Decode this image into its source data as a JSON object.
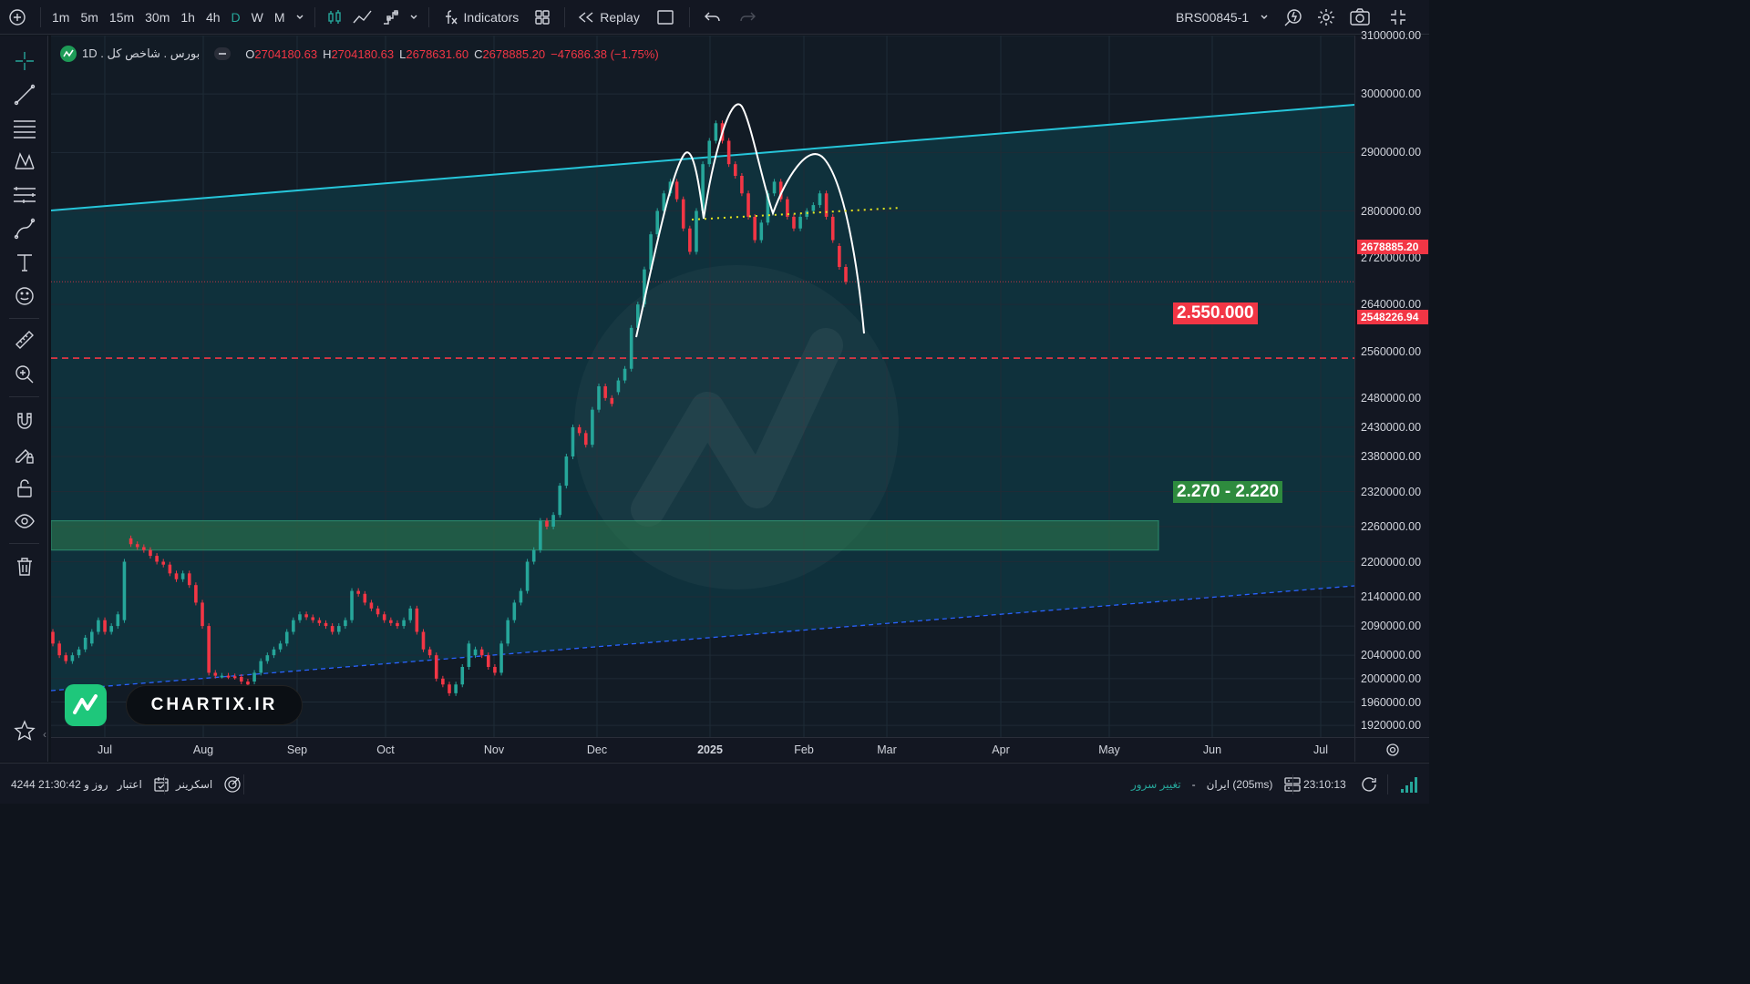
{
  "toolbar": {
    "timeframes": [
      "1m",
      "5m",
      "15m",
      "30m",
      "1h",
      "4h",
      "D",
      "W",
      "M"
    ],
    "active_timeframe": "D",
    "indicators_label": "Indicators",
    "replay_label": "Replay",
    "symbol": "BRS00845-1"
  },
  "legend": {
    "title": "بورس . شاخص کل . 1D",
    "open_key": "O",
    "open": "2704180.63",
    "high_key": "H",
    "high": "2704180.63",
    "low_key": "L",
    "low": "2678631.60",
    "close_key": "C",
    "close": "2678885.20",
    "change": "−47686.38 (−1.75%)"
  },
  "price_axis": {
    "ticks": [
      {
        "label": "3100000.00",
        "value": 3100000
      },
      {
        "label": "3000000.00",
        "value": 3000000
      },
      {
        "label": "2900000.00",
        "value": 2900000
      },
      {
        "label": "2800000.00",
        "value": 2800000
      },
      {
        "label": "2720000.00",
        "value": 2720000
      },
      {
        "label": "2640000.00",
        "value": 2640000
      },
      {
        "label": "2560000.00",
        "value": 2560000
      },
      {
        "label": "2480000.00",
        "value": 2480000
      },
      {
        "label": "2430000.00",
        "value": 2430000
      },
      {
        "label": "2380000.00",
        "value": 2380000
      },
      {
        "label": "2320000.00",
        "value": 2320000
      },
      {
        "label": "2260000.00",
        "value": 2260000
      },
      {
        "label": "2200000.00",
        "value": 2200000
      },
      {
        "label": "2140000.00",
        "value": 2140000
      },
      {
        "label": "2090000.00",
        "value": 2090000
      },
      {
        "label": "2040000.00",
        "value": 2040000
      },
      {
        "label": "2000000.00",
        "value": 2000000
      },
      {
        "label": "1960000.00",
        "value": 1960000
      },
      {
        "label": "1920000.00",
        "value": 1920000
      }
    ],
    "last_price_label": "2678885.20",
    "line_price_label": "2548226.94",
    "badge_colors": {
      "last": "#f23645",
      "line": "#f23645"
    }
  },
  "time_axis": {
    "labels": [
      "Jul",
      "Aug",
      "Sep",
      "Oct",
      "Nov",
      "Dec",
      "2025",
      "Feb",
      "Mar",
      "Apr",
      "May",
      "Jun",
      "Jul"
    ],
    "bold_label": "2025"
  },
  "levels": {
    "resistance_label": "2.550.000",
    "zone_label": "2.270 - 2.220"
  },
  "brand": {
    "text": "CHARTIX.IR"
  },
  "status": {
    "credit_label": "اعتبار",
    "credit_value": "4244 روز و 21:30:42",
    "screener_label": "اسکرینر",
    "server_change_label": "تغییر سرور",
    "server_name": "ایران (205ms)",
    "separator": "-",
    "clock": "23:10:13"
  },
  "colors": {
    "up": "#26a69a",
    "down": "#f23645",
    "accent": "#26c6da",
    "zone": "#2e8b3e",
    "background": "#131722"
  },
  "chart_data": {
    "type": "candlestick",
    "symbol": "بورس . شاخص کل",
    "interval": "1D",
    "y_range": [
      1900000,
      3100000
    ],
    "x_range_labels": [
      "Jul",
      "Jul"
    ],
    "annotations": [
      {
        "type": "horizontal_line",
        "value": 2548226.94,
        "style": "dashed",
        "color": "#f23645",
        "label": "2.550.000"
      },
      {
        "type": "zone",
        "from": 2220000,
        "to": 2270000,
        "color": "#2e8b3e",
        "label": "2.270 - 2.220"
      },
      {
        "type": "trendline",
        "color": "#26c6da",
        "style": "solid"
      },
      {
        "type": "trendline",
        "color": "#2962ff",
        "style": "dashed"
      },
      {
        "type": "pattern",
        "name": "head-and-shoulders",
        "neckline_color": "#e6e61e"
      }
    ],
    "last_price": 2678885.2
  }
}
